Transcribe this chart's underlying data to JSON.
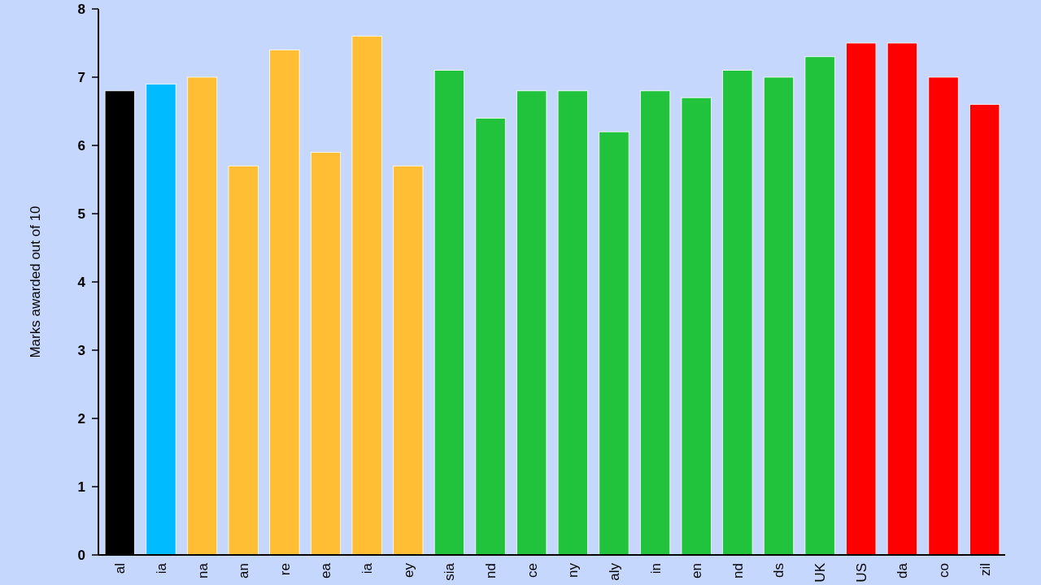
{
  "chart_data": {
    "type": "bar",
    "ylabel": "Marks awarded out of 10",
    "categories": [
      "al",
      "ia",
      "na",
      "an",
      "re",
      "ea",
      "ia",
      "ey",
      "sia",
      "nd",
      "ce",
      "ny",
      "aly",
      "in",
      "en",
      "nd",
      "ds",
      "UK",
      "US",
      "da",
      "co",
      "zil"
    ],
    "values": [
      6.8,
      6.9,
      7.0,
      5.7,
      7.4,
      5.9,
      7.6,
      5.7,
      7.1,
      6.4,
      6.8,
      6.8,
      6.2,
      6.8,
      6.7,
      7.1,
      7.0,
      7.3,
      7.5,
      7.5,
      7.0,
      6.6
    ],
    "colors": [
      "#000000",
      "#00bbff",
      "#ffbe33",
      "#ffbe33",
      "#ffbe33",
      "#ffbe33",
      "#ffbe33",
      "#ffbe33",
      "#22c33c",
      "#22c33c",
      "#22c33c",
      "#22c33c",
      "#22c33c",
      "#22c33c",
      "#22c33c",
      "#22c33c",
      "#22c33c",
      "#22c33c",
      "#ff0000",
      "#ff0000",
      "#ff0000",
      "#ff0000"
    ],
    "ylim": [
      0,
      8
    ],
    "yticks": [
      0,
      1,
      2,
      3,
      4,
      5,
      6,
      7,
      8
    ],
    "grid": false
  }
}
